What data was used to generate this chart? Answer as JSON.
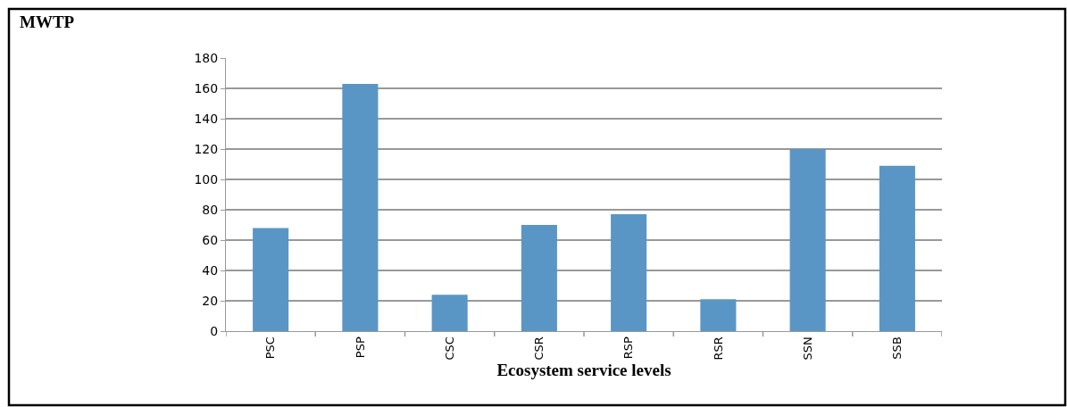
{
  "chart_data": {
    "type": "bar",
    "annotations": [
      "MWTP"
    ],
    "xlabel": "Ecosystem service levels",
    "categories": [
      "PSC",
      "PSP",
      "CSC",
      "CSR",
      "RSP",
      "RSR",
      "SSN",
      "SSB"
    ],
    "values": [
      68,
      163,
      24,
      70,
      77,
      21,
      120,
      109
    ],
    "color": "#5a96c5",
    "ylim": [
      0,
      180
    ],
    "yticks": [
      0,
      20,
      40,
      60,
      80,
      100,
      120,
      140,
      160,
      180
    ],
    "grid": "y"
  }
}
